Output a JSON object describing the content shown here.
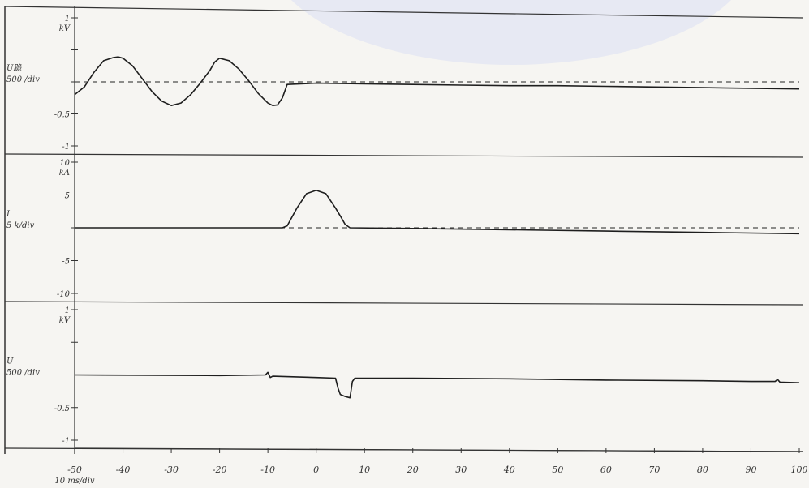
{
  "chart_data": [
    {
      "type": "line",
      "panel": "top",
      "label_lines": [
        "U跪",
        "500 /div"
      ],
      "unit": "kV",
      "ticks": [
        {
          "v": 1,
          "t": "1"
        },
        {
          "v": 0.5,
          "t": ""
        },
        {
          "v": 0,
          "t": ""
        },
        {
          "v": -0.5,
          "t": "-0.5"
        },
        {
          "v": -1,
          "t": "-1"
        }
      ],
      "ylim": [
        -1,
        1
      ],
      "xlim": [
        -50,
        100
      ],
      "baseline_dashed": true,
      "series": [
        {
          "x": [
            -50,
            -48,
            -46,
            -44,
            -42,
            -41,
            -40,
            -38,
            -36,
            -34,
            -32,
            -30,
            -28,
            -26,
            -24,
            -22,
            -21,
            -20,
            -18,
            -16,
            -14,
            -12,
            -10,
            -9,
            -8,
            -7,
            -6,
            0,
            10,
            20,
            30,
            40,
            50,
            60,
            70,
            80,
            90,
            100
          ],
          "y": [
            -0.2,
            -0.08,
            0.15,
            0.33,
            0.38,
            0.39,
            0.37,
            0.25,
            0.05,
            -0.15,
            -0.3,
            -0.37,
            -0.33,
            -0.2,
            -0.02,
            0.18,
            0.31,
            0.37,
            0.33,
            0.2,
            0.02,
            -0.18,
            -0.33,
            -0.37,
            -0.36,
            -0.25,
            -0.04,
            -0.02,
            -0.03,
            -0.04,
            -0.05,
            -0.06,
            -0.06,
            -0.07,
            -0.08,
            -0.09,
            -0.1,
            -0.11
          ]
        }
      ]
    },
    {
      "type": "line",
      "panel": "middle",
      "label_lines": [
        "I",
        "5 k/div"
      ],
      "unit": "kA",
      "ticks": [
        {
          "v": 10,
          "t": "10"
        },
        {
          "v": 5,
          "t": "5"
        },
        {
          "v": 0,
          "t": ""
        },
        {
          "v": -5,
          "t": "-5"
        },
        {
          "v": -10,
          "t": "-10"
        }
      ],
      "ylim": [
        -10,
        10
      ],
      "xlim": [
        -50,
        100
      ],
      "baseline_dashed": true,
      "series": [
        {
          "x": [
            -50,
            -7,
            -6,
            -4,
            -2,
            0,
            2,
            4,
            5,
            6,
            7,
            20,
            40,
            60,
            80,
            100
          ],
          "y": [
            0,
            0,
            0.3,
            3,
            5.2,
            5.7,
            5.2,
            3,
            1.8,
            0.5,
            0,
            -0.1,
            -0.3,
            -0.5,
            -0.7,
            -0.9
          ]
        }
      ]
    },
    {
      "type": "line",
      "panel": "bottom",
      "label_lines": [
        "U",
        "500 /div"
      ],
      "unit": "kV",
      "ticks": [
        {
          "v": 1,
          "t": "1"
        },
        {
          "v": 0.5,
          "t": ""
        },
        {
          "v": 0,
          "t": ""
        },
        {
          "v": -0.5,
          "t": "-0.5"
        },
        {
          "v": -1,
          "t": "-1"
        }
      ],
      "ylim": [
        -1,
        1
      ],
      "xlim": [
        -50,
        100
      ],
      "baseline_dashed": false,
      "series": [
        {
          "x": [
            -50,
            -20,
            -10.5,
            -10,
            -9.5,
            -9,
            0,
            4,
            4.5,
            5,
            6,
            7,
            7.5,
            8,
            20,
            40,
            60,
            80,
            90,
            95,
            95.5,
            96,
            100
          ],
          "y": [
            0,
            -0.01,
            0,
            0.04,
            -0.04,
            -0.02,
            -0.04,
            -0.05,
            -0.2,
            -0.3,
            -0.33,
            -0.35,
            -0.1,
            -0.05,
            -0.05,
            -0.06,
            -0.08,
            -0.09,
            -0.1,
            -0.1,
            -0.07,
            -0.11,
            -0.12
          ]
        }
      ]
    }
  ],
  "x_axis": {
    "ticks": [
      -50,
      -40,
      -30,
      -20,
      -10,
      0,
      10,
      20,
      30,
      40,
      50,
      60,
      70,
      80,
      90,
      100
    ],
    "scale_label": "10 ms/div"
  }
}
